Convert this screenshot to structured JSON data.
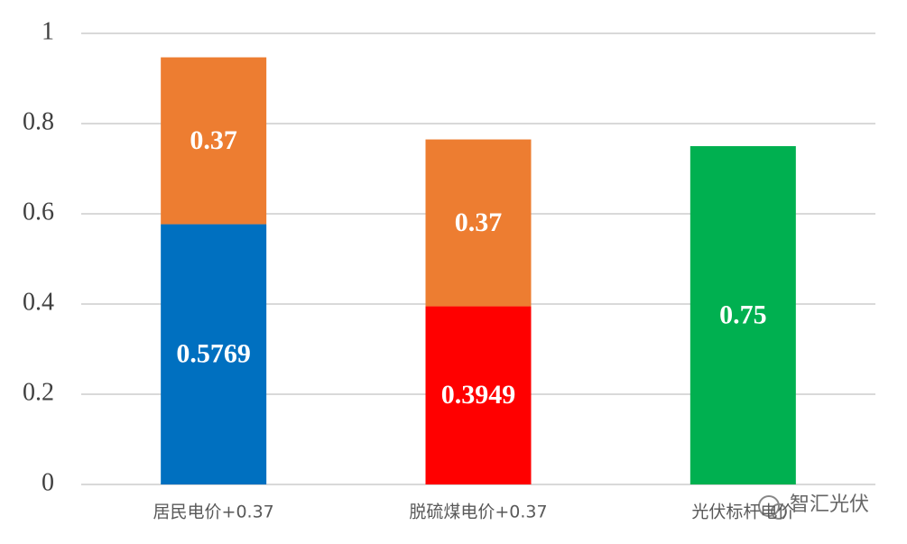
{
  "chart_data": {
    "type": "stacked_bar",
    "categories": [
      "居民电价+0.37",
      "脱硫煤电价+0.37",
      "光伏标杆电价"
    ],
    "series": [
      {
        "colors": [
          "#0070c0",
          "#ff0000",
          "#00b050"
        ],
        "values": [
          0.5769,
          0.3949,
          0.75
        ]
      },
      {
        "color": "#ed7d31",
        "values": [
          0.37,
          0.37,
          null
        ]
      }
    ],
    "ylim": [
      0,
      1
    ],
    "yticks": [
      0,
      0.2,
      0.4,
      0.6,
      0.8,
      1
    ],
    "grid": true,
    "watermark": "智汇光伏"
  }
}
